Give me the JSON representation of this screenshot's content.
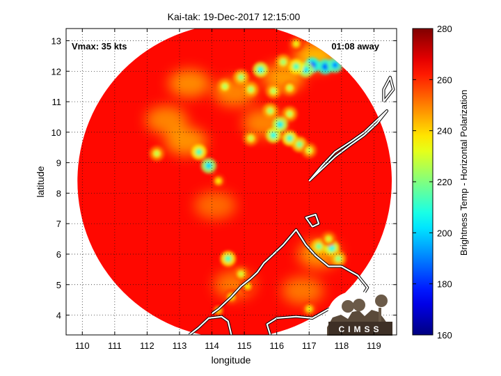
{
  "chart_data": {
    "type": "heatmap",
    "title": "Kai-tak: 19-Dec-2017 12:15:00",
    "xlabel": "longitude",
    "ylabel": "latitude",
    "xlim": [
      109.5,
      119.7
    ],
    "ylim": [
      3.35,
      13.4
    ],
    "xticks": [
      110,
      111,
      112,
      113,
      114,
      115,
      116,
      117,
      118,
      119
    ],
    "yticks": [
      4,
      5,
      6,
      7,
      8,
      9,
      10,
      11,
      12,
      13
    ],
    "grid": true,
    "annotations": {
      "vmax": "Vmax: 35 kts",
      "time_away": "01:08 away"
    },
    "colorbar": {
      "label": "Brightness Temp - Horizontal Polarization",
      "min": 160,
      "max": 280,
      "ticks": [
        160,
        180,
        200,
        220,
        240,
        260,
        280
      ],
      "colormap": "jet"
    },
    "swath": {
      "center": [
        114.7,
        8.4
      ],
      "radius_deg": 4.85
    },
    "background_value": 264,
    "cold_spots": [
      {
        "lon": 117.1,
        "lat": 12.2,
        "value": 180
      },
      {
        "lon": 117.5,
        "lat": 12.15,
        "value": 183
      },
      {
        "lon": 117.8,
        "lat": 12.2,
        "value": 188
      },
      {
        "lon": 116.9,
        "lat": 12.05,
        "value": 200
      },
      {
        "lon": 116.6,
        "lat": 12.15,
        "value": 210
      },
      {
        "lon": 116.2,
        "lat": 12.3,
        "value": 220
      },
      {
        "lon": 116.6,
        "lat": 12.9,
        "value": 232
      },
      {
        "lon": 115.5,
        "lat": 12.05,
        "value": 205
      },
      {
        "lon": 114.9,
        "lat": 11.8,
        "value": 218
      },
      {
        "lon": 114.4,
        "lat": 11.5,
        "value": 222
      },
      {
        "lon": 115.2,
        "lat": 11.4,
        "value": 220
      },
      {
        "lon": 115.9,
        "lat": 11.35,
        "value": 222
      },
      {
        "lon": 116.4,
        "lat": 11.45,
        "value": 225
      },
      {
        "lon": 115.8,
        "lat": 10.7,
        "value": 220
      },
      {
        "lon": 116.4,
        "lat": 10.6,
        "value": 222
      },
      {
        "lon": 116.1,
        "lat": 10.25,
        "value": 202
      },
      {
        "lon": 115.9,
        "lat": 9.9,
        "value": 205
      },
      {
        "lon": 116.4,
        "lat": 9.8,
        "value": 208
      },
      {
        "lon": 116.7,
        "lat": 9.6,
        "value": 215
      },
      {
        "lon": 117.0,
        "lat": 9.4,
        "value": 225
      },
      {
        "lon": 115.2,
        "lat": 9.8,
        "value": 225
      },
      {
        "lon": 113.6,
        "lat": 9.35,
        "value": 210
      },
      {
        "lon": 113.9,
        "lat": 8.9,
        "value": 198
      },
      {
        "lon": 112.3,
        "lat": 9.3,
        "value": 225
      },
      {
        "lon": 114.2,
        "lat": 8.4,
        "value": 235
      },
      {
        "lon": 117.3,
        "lat": 6.25,
        "value": 215
      },
      {
        "lon": 117.7,
        "lat": 6.2,
        "value": 205
      },
      {
        "lon": 117.9,
        "lat": 5.85,
        "value": 218
      },
      {
        "lon": 117.6,
        "lat": 6.5,
        "value": 228
      },
      {
        "lon": 114.5,
        "lat": 5.85,
        "value": 210
      },
      {
        "lon": 114.9,
        "lat": 5.35,
        "value": 228
      },
      {
        "lon": 115.1,
        "lat": 4.95,
        "value": 235
      },
      {
        "lon": 114.6,
        "lat": 4.6,
        "value": 232
      },
      {
        "lon": 114.2,
        "lat": 4.15,
        "value": 238
      },
      {
        "lon": 117.0,
        "lat": 4.2,
        "value": 232
      },
      {
        "lon": 117.5,
        "lat": 3.8,
        "value": 240
      }
    ],
    "cloud_bands": [
      {
        "lon": 113.3,
        "lat": 11.6,
        "value": 245
      },
      {
        "lon": 112.6,
        "lat": 10.4,
        "value": 246
      },
      {
        "lon": 113.2,
        "lat": 9.7,
        "value": 244
      },
      {
        "lon": 114.7,
        "lat": 11.3,
        "value": 246
      },
      {
        "lon": 116.2,
        "lat": 11.8,
        "value": 242
      },
      {
        "lon": 115.6,
        "lat": 10.3,
        "value": 246
      },
      {
        "lon": 117.2,
        "lat": 12.5,
        "value": 238
      },
      {
        "lon": 114.1,
        "lat": 7.6,
        "value": 250
      },
      {
        "lon": 117.3,
        "lat": 6.0,
        "value": 244
      },
      {
        "lon": 114.7,
        "lat": 5.0,
        "value": 248
      },
      {
        "lon": 116.8,
        "lat": 4.8,
        "value": 248
      }
    ],
    "coastline": [
      [
        [
          114.6,
          3.35
        ],
        [
          114.5,
          3.8
        ],
        [
          114.3,
          3.95
        ],
        [
          113.9,
          3.9
        ],
        [
          113.6,
          3.6
        ],
        [
          113.3,
          3.35
        ]
      ],
      [
        [
          115.8,
          3.35
        ],
        [
          115.7,
          3.7
        ],
        [
          116.0,
          3.9
        ],
        [
          116.6,
          3.95
        ],
        [
          117.1,
          3.9
        ],
        [
          117.6,
          4.2
        ],
        [
          118.1,
          4.3
        ],
        [
          118.5,
          4.4
        ],
        [
          118.8,
          4.9
        ],
        [
          118.5,
          5.3
        ],
        [
          118.0,
          5.6
        ],
        [
          117.6,
          5.6
        ],
        [
          117.2,
          5.95
        ],
        [
          116.9,
          6.3
        ],
        [
          116.6,
          6.8
        ],
        [
          116.2,
          6.3
        ],
        [
          115.8,
          5.9
        ],
        [
          115.6,
          5.7
        ],
        [
          115.4,
          5.4
        ],
        [
          115.2,
          5.2
        ],
        [
          114.9,
          4.95
        ],
        [
          114.6,
          4.6
        ],
        [
          114.4,
          4.4
        ],
        [
          114.2,
          4.2
        ],
        [
          114.0,
          4.05
        ]
      ],
      [
        [
          117.1,
          6.9
        ],
        [
          117.3,
          7.0
        ],
        [
          117.2,
          7.3
        ],
        [
          116.9,
          7.2
        ],
        [
          117.1,
          6.9
        ]
      ],
      [
        [
          117.0,
          8.4
        ],
        [
          117.3,
          8.7
        ],
        [
          117.8,
          9.2
        ],
        [
          118.3,
          9.6
        ],
        [
          118.7,
          9.9
        ],
        [
          119.1,
          10.3
        ],
        [
          119.4,
          10.7
        ],
        [
          119.1,
          10.4
        ],
        [
          118.7,
          10.0
        ],
        [
          118.3,
          9.7
        ],
        [
          117.8,
          9.35
        ],
        [
          117.4,
          8.9
        ],
        [
          117.0,
          8.4
        ]
      ],
      [
        [
          119.3,
          11.0
        ],
        [
          119.6,
          11.4
        ],
        [
          119.5,
          11.8
        ],
        [
          119.3,
          11.4
        ],
        [
          119.3,
          11.0
        ]
      ]
    ],
    "logo_text": "CIMSS"
  }
}
